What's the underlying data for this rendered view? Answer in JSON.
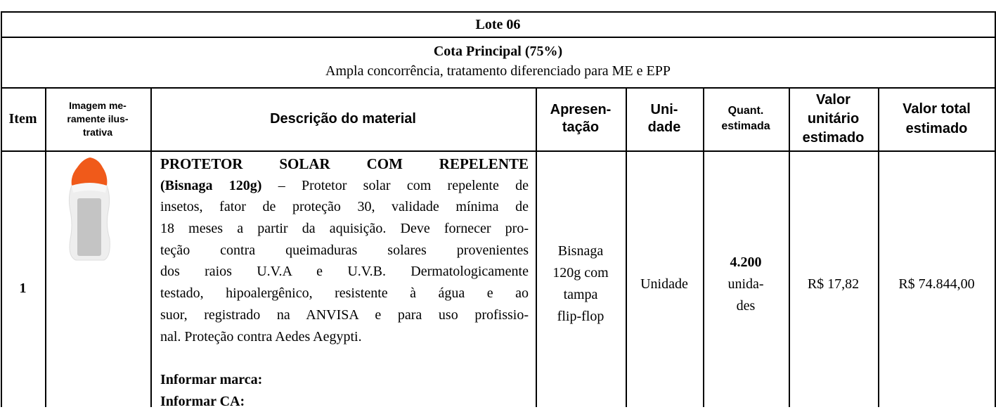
{
  "table": {
    "title": "Lote 06",
    "quota": "Cota Principal (75%)",
    "quota_note": "Ampla concorrência, tratamento diferenciado para ME e EPP",
    "headers": [
      [
        "Item"
      ],
      [
        "Imagem me-",
        "ramente ilus-",
        "trativa"
      ],
      [
        "Descrição do material"
      ],
      [
        "Apresen-",
        "tação"
      ],
      [
        "Uni-",
        "dade"
      ],
      [
        "Quant.",
        "estimada"
      ],
      [
        "Valor",
        "unitário",
        "estimado"
      ],
      [
        "Valor total",
        "estimado"
      ]
    ],
    "rows": [
      {
        "item": "1",
        "description": {
          "heading": "PROTETOR SOLAR COM REPELENTE",
          "subheading": "(Bisnaga 120g)",
          "lines": [
            "– Protetor solar com repelente de",
            "insetos, fator de proteção 30, validade mínima de",
            "18 meses a partir da aquisição. Deve fornecer pro-",
            "teção contra queimaduras solares provenientes",
            "dos raios U.V.A e U.V.B. Dermatologicamente",
            "testado, hipoalergênico, resistente à água e ao",
            "suor, registrado na ANVISA e para uso profissio-",
            "nal. Proteção contra Aedes Aegypti."
          ],
          "fields": [
            "Informar marca:",
            "Informar CA:"
          ]
        },
        "presentation": [
          "Bisnaga",
          "120g com",
          "tampa",
          "flip-flop"
        ],
        "unit": "Unidade",
        "quantity": "4.200",
        "quantity_unit": [
          "unida-",
          "des"
        ],
        "unit_price": "R$ 17,82",
        "total_price": "R$ 74.844,00"
      }
    ]
  }
}
